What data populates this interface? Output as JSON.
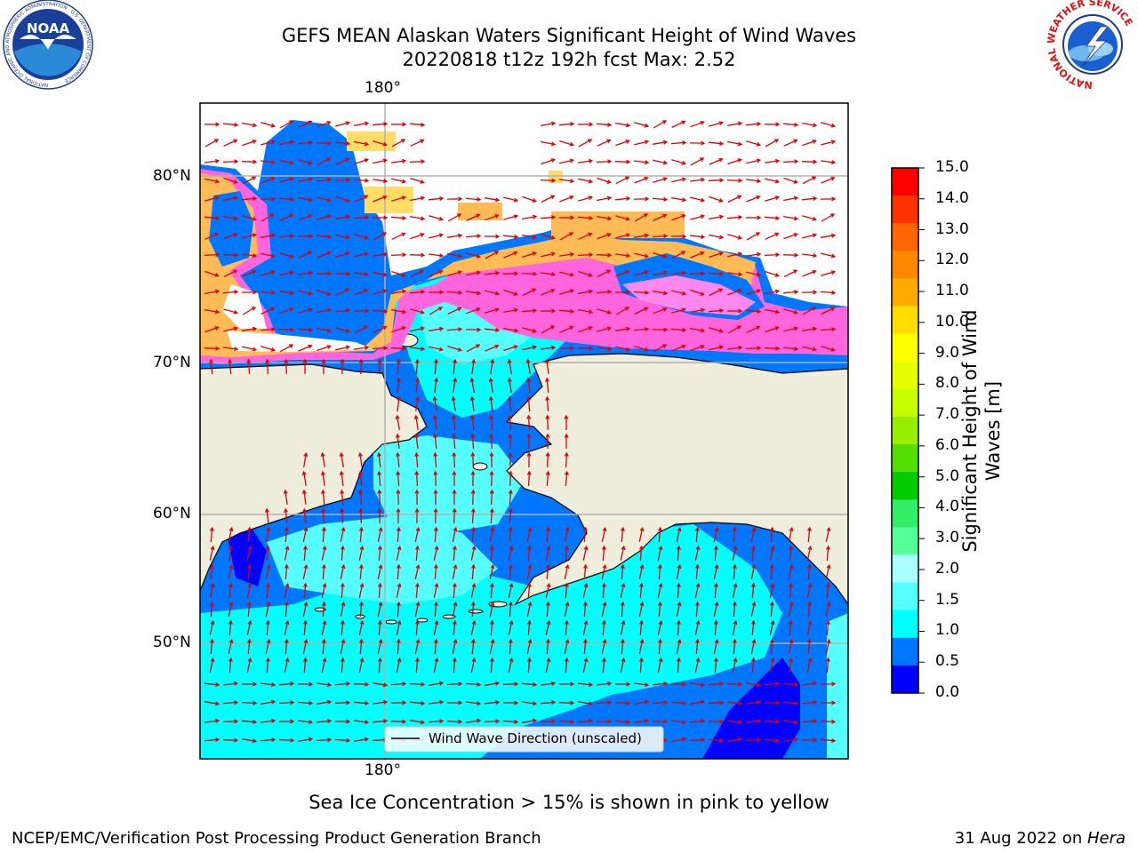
{
  "header": {
    "title_line1": "GEFS MEAN Alaskan Waters Significant Height of Wind Waves",
    "title_line2": "20220818 t12z 192h fcst   Max: 2.52"
  },
  "logos": {
    "left": "NOAA",
    "left_ring": "NATIONAL OCEANIC AND ATMOSPHERIC ADMINISTRATION · U.S. DEPARTMENT OF COMMERCE",
    "right_ring": "NATIONAL WEATHER SERVICE"
  },
  "map": {
    "lon_label_top": "180°",
    "lon_label_bottom": "180°",
    "lat_labels": [
      "80°N",
      "70°N",
      "60°N",
      "50°N"
    ],
    "legend_label": "Wind Wave Direction (unscaled)",
    "colors": {
      "land": "#efeddc",
      "ice_white": "#ffffff",
      "arrow": "#e00000"
    }
  },
  "colorbar": {
    "label": "Significant Height of Wind Waves [m]",
    "label_line1": "Significant Height of Wind",
    "label_line2": "Waves [m]",
    "ticks": [
      "15.0",
      "14.0",
      "13.0",
      "12.0",
      "11.0",
      "10.0",
      "9.0",
      "8.0",
      "7.0",
      "6.0",
      "5.0",
      "4.0",
      "3.0",
      "2.0",
      "1.5",
      "1.0",
      "0.5",
      "0.0"
    ],
    "bands_top_to_bottom": [
      "#ff0000",
      "#ff3300",
      "#ff6600",
      "#ff8800",
      "#ffaa00",
      "#ffdd00",
      "#ffff00",
      "#e6ff00",
      "#c8ff00",
      "#99ee00",
      "#55dd00",
      "#00cc00",
      "#33ee66",
      "#55ff99",
      "#aaffff",
      "#55ffff",
      "#00ffff",
      "#0077ff",
      "#0000ff"
    ]
  },
  "footer": {
    "note": "Sea Ice Concentration > 15% is shown in pink to yellow",
    "left": "NCEP/EMC/Verification Post Processing Product Generation Branch",
    "right_date": "31 Aug 2022 on ",
    "right_machine": "Hera"
  }
}
